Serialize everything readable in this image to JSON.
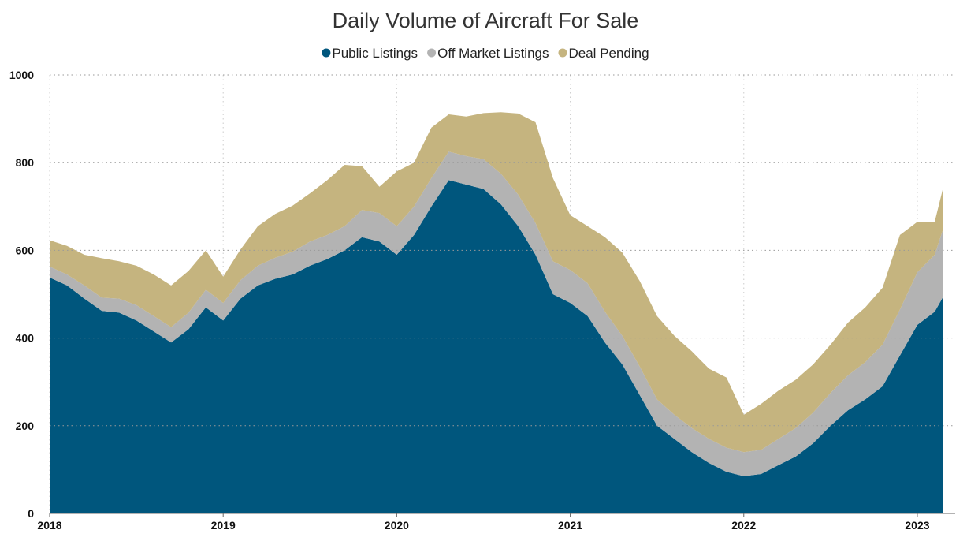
{
  "chart_data": {
    "type": "area",
    "stacked": true,
    "title": "Daily Volume of Aircraft For Sale",
    "legend_position": "top-center",
    "grid": true,
    "ylim": [
      0,
      1000
    ],
    "y_ticks": [
      "0",
      "200",
      "400",
      "600",
      "800",
      "1000"
    ],
    "x_ticks": [
      "2018",
      "2019",
      "2020",
      "2021",
      "2022",
      "2023"
    ],
    "xlim": [
      2018.0,
      2023.2
    ],
    "x": [
      2018.0,
      2018.1,
      2018.2,
      2018.3,
      2018.4,
      2018.5,
      2018.6,
      2018.7,
      2018.8,
      2018.9,
      2019.0,
      2019.1,
      2019.2,
      2019.3,
      2019.4,
      2019.5,
      2019.6,
      2019.7,
      2019.8,
      2019.9,
      2020.0,
      2020.1,
      2020.2,
      2020.3,
      2020.4,
      2020.5,
      2020.6,
      2020.7,
      2020.8,
      2020.9,
      2021.0,
      2021.1,
      2021.2,
      2021.3,
      2021.4,
      2021.5,
      2021.6,
      2021.7,
      2021.8,
      2021.9,
      2022.0,
      2022.1,
      2022.2,
      2022.3,
      2022.4,
      2022.5,
      2022.6,
      2022.7,
      2022.8,
      2022.9,
      2023.0,
      2023.1,
      2023.15
    ],
    "series": [
      {
        "name": "Public Listings",
        "color": "#00567d",
        "values": [
          538,
          520,
          490,
          462,
          458,
          440,
          415,
          390,
          420,
          470,
          440,
          490,
          520,
          535,
          545,
          565,
          580,
          600,
          630,
          620,
          590,
          635,
          700,
          760,
          750,
          740,
          705,
          655,
          590,
          500,
          480,
          450,
          390,
          340,
          270,
          200,
          170,
          140,
          115,
          95,
          85,
          90,
          110,
          130,
          160,
          200,
          235,
          260,
          290,
          360,
          430,
          460,
          495
        ]
      },
      {
        "name": "Off Market Listings",
        "color": "#b3b3b3",
        "values": [
          25,
          25,
          30,
          30,
          32,
          35,
          35,
          35,
          38,
          40,
          40,
          42,
          45,
          48,
          52,
          55,
          55,
          55,
          62,
          65,
          65,
          65,
          65,
          65,
          65,
          68,
          70,
          72,
          72,
          75,
          75,
          75,
          70,
          65,
          65,
          60,
          55,
          55,
          55,
          55,
          55,
          55,
          60,
          65,
          70,
          75,
          80,
          85,
          95,
          105,
          120,
          130,
          155
        ]
      },
      {
        "name": "Deal Pending",
        "color": "#c5b47f",
        "values": [
          60,
          65,
          70,
          90,
          85,
          90,
          95,
          95,
          95,
          90,
          60,
          70,
          90,
          100,
          105,
          110,
          125,
          140,
          100,
          60,
          125,
          100,
          115,
          85,
          90,
          105,
          140,
          185,
          230,
          190,
          125,
          130,
          170,
          190,
          195,
          190,
          180,
          175,
          160,
          160,
          85,
          105,
          110,
          110,
          110,
          110,
          120,
          125,
          130,
          170,
          115,
          75,
          95
        ]
      }
    ]
  }
}
